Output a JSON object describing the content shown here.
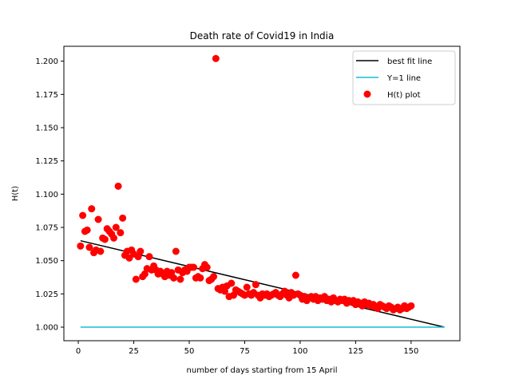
{
  "chart_data": {
    "type": "scatter",
    "title": "Death rate of Covid19 in India",
    "xlabel": "number of days starting from 15 April",
    "ylabel": "H(t)",
    "xlim": [
      -6.5,
      172
    ],
    "ylim": [
      0.9898,
      1.2112
    ],
    "xticks": [
      0,
      25,
      50,
      75,
      100,
      125,
      150
    ],
    "yticks": [
      1.0,
      1.025,
      1.05,
      1.075,
      1.1,
      1.125,
      1.15,
      1.175,
      1.2
    ],
    "ytick_labels": [
      "1.000",
      "1.025",
      "1.050",
      "1.075",
      "1.100",
      "1.125",
      "1.150",
      "1.175",
      "1.200"
    ],
    "grid": false,
    "legend_position": "top-right",
    "colors": {
      "best_fit": "#000000",
      "y1": "#17becf",
      "scatter": "#ff0000"
    },
    "series": [
      {
        "name": "best fit line",
        "kind": "line",
        "x": [
          1,
          165
        ],
        "y": [
          1.065,
          1.0
        ]
      },
      {
        "name": "Y=1 line",
        "kind": "line",
        "x": [
          1,
          165
        ],
        "y": [
          1.0,
          1.0
        ]
      },
      {
        "name": "H(t) plot",
        "kind": "scatter",
        "x": [
          1,
          2,
          3,
          4,
          5,
          6,
          7,
          8,
          9,
          10,
          11,
          12,
          13,
          14,
          15,
          16,
          17,
          18,
          19,
          20,
          21,
          22,
          23,
          24,
          25,
          26,
          27,
          28,
          29,
          30,
          31,
          32,
          33,
          34,
          35,
          36,
          37,
          38,
          39,
          40,
          41,
          42,
          43,
          44,
          45,
          46,
          47,
          48,
          49,
          50,
          51,
          52,
          53,
          54,
          55,
          56,
          57,
          58,
          59,
          60,
          61,
          62,
          63,
          64,
          65,
          66,
          67,
          68,
          69,
          70,
          71,
          72,
          73,
          74,
          75,
          76,
          77,
          78,
          79,
          80,
          81,
          82,
          83,
          84,
          85,
          86,
          87,
          88,
          89,
          90,
          91,
          92,
          93,
          94,
          95,
          96,
          97,
          98,
          99,
          100,
          101,
          102,
          103,
          104,
          105,
          106,
          107,
          108,
          109,
          110,
          111,
          112,
          113,
          114,
          115,
          116,
          117,
          118,
          119,
          120,
          121,
          122,
          123,
          124,
          125,
          126,
          127,
          128,
          129,
          130,
          131,
          132,
          133,
          134,
          135,
          136,
          137,
          138,
          139,
          140,
          141,
          142,
          143,
          144,
          145,
          146,
          147,
          148,
          149,
          150
        ],
        "y": [
          1.061,
          1.084,
          1.072,
          1.073,
          1.06,
          1.089,
          1.056,
          1.058,
          1.081,
          1.057,
          1.067,
          1.066,
          1.074,
          1.072,
          1.07,
          1.067,
          1.075,
          1.106,
          1.071,
          1.082,
          1.054,
          1.057,
          1.052,
          1.058,
          1.055,
          1.036,
          1.053,
          1.057,
          1.038,
          1.04,
          1.044,
          1.053,
          1.043,
          1.046,
          1.043,
          1.04,
          1.042,
          1.04,
          1.038,
          1.042,
          1.039,
          1.041,
          1.037,
          1.057,
          1.043,
          1.036,
          1.041,
          1.043,
          1.042,
          1.045,
          1.045,
          1.045,
          1.037,
          1.038,
          1.037,
          1.044,
          1.047,
          1.045,
          1.035,
          1.036,
          1.038,
          1.202,
          1.029,
          1.028,
          1.03,
          1.027,
          1.031,
          1.023,
          1.033,
          1.024,
          1.028,
          1.027,
          1.026,
          1.025,
          1.024,
          1.03,
          1.025,
          1.024,
          1.026,
          1.032,
          1.024,
          1.022,
          1.025,
          1.024,
          1.025,
          1.023,
          1.024,
          1.025,
          1.026,
          1.024,
          1.023,
          1.025,
          1.027,
          1.024,
          1.022,
          1.026,
          1.024,
          1.039,
          1.025,
          1.024,
          1.021,
          1.023,
          1.02,
          1.022,
          1.023,
          1.021,
          1.023,
          1.02,
          1.022,
          1.021,
          1.023,
          1.02,
          1.021,
          1.019,
          1.022,
          1.02,
          1.019,
          1.021,
          1.02,
          1.021,
          1.018,
          1.02,
          1.019,
          1.02,
          1.017,
          1.019,
          1.018,
          1.016,
          1.019,
          1.017,
          1.018,
          1.016,
          1.017,
          1.015,
          1.014,
          1.017,
          1.016,
          1.015,
          1.014,
          1.016,
          1.015,
          1.013,
          1.014,
          1.015,
          1.013,
          1.014,
          1.016,
          1.014,
          1.015,
          1.016
        ]
      }
    ]
  }
}
